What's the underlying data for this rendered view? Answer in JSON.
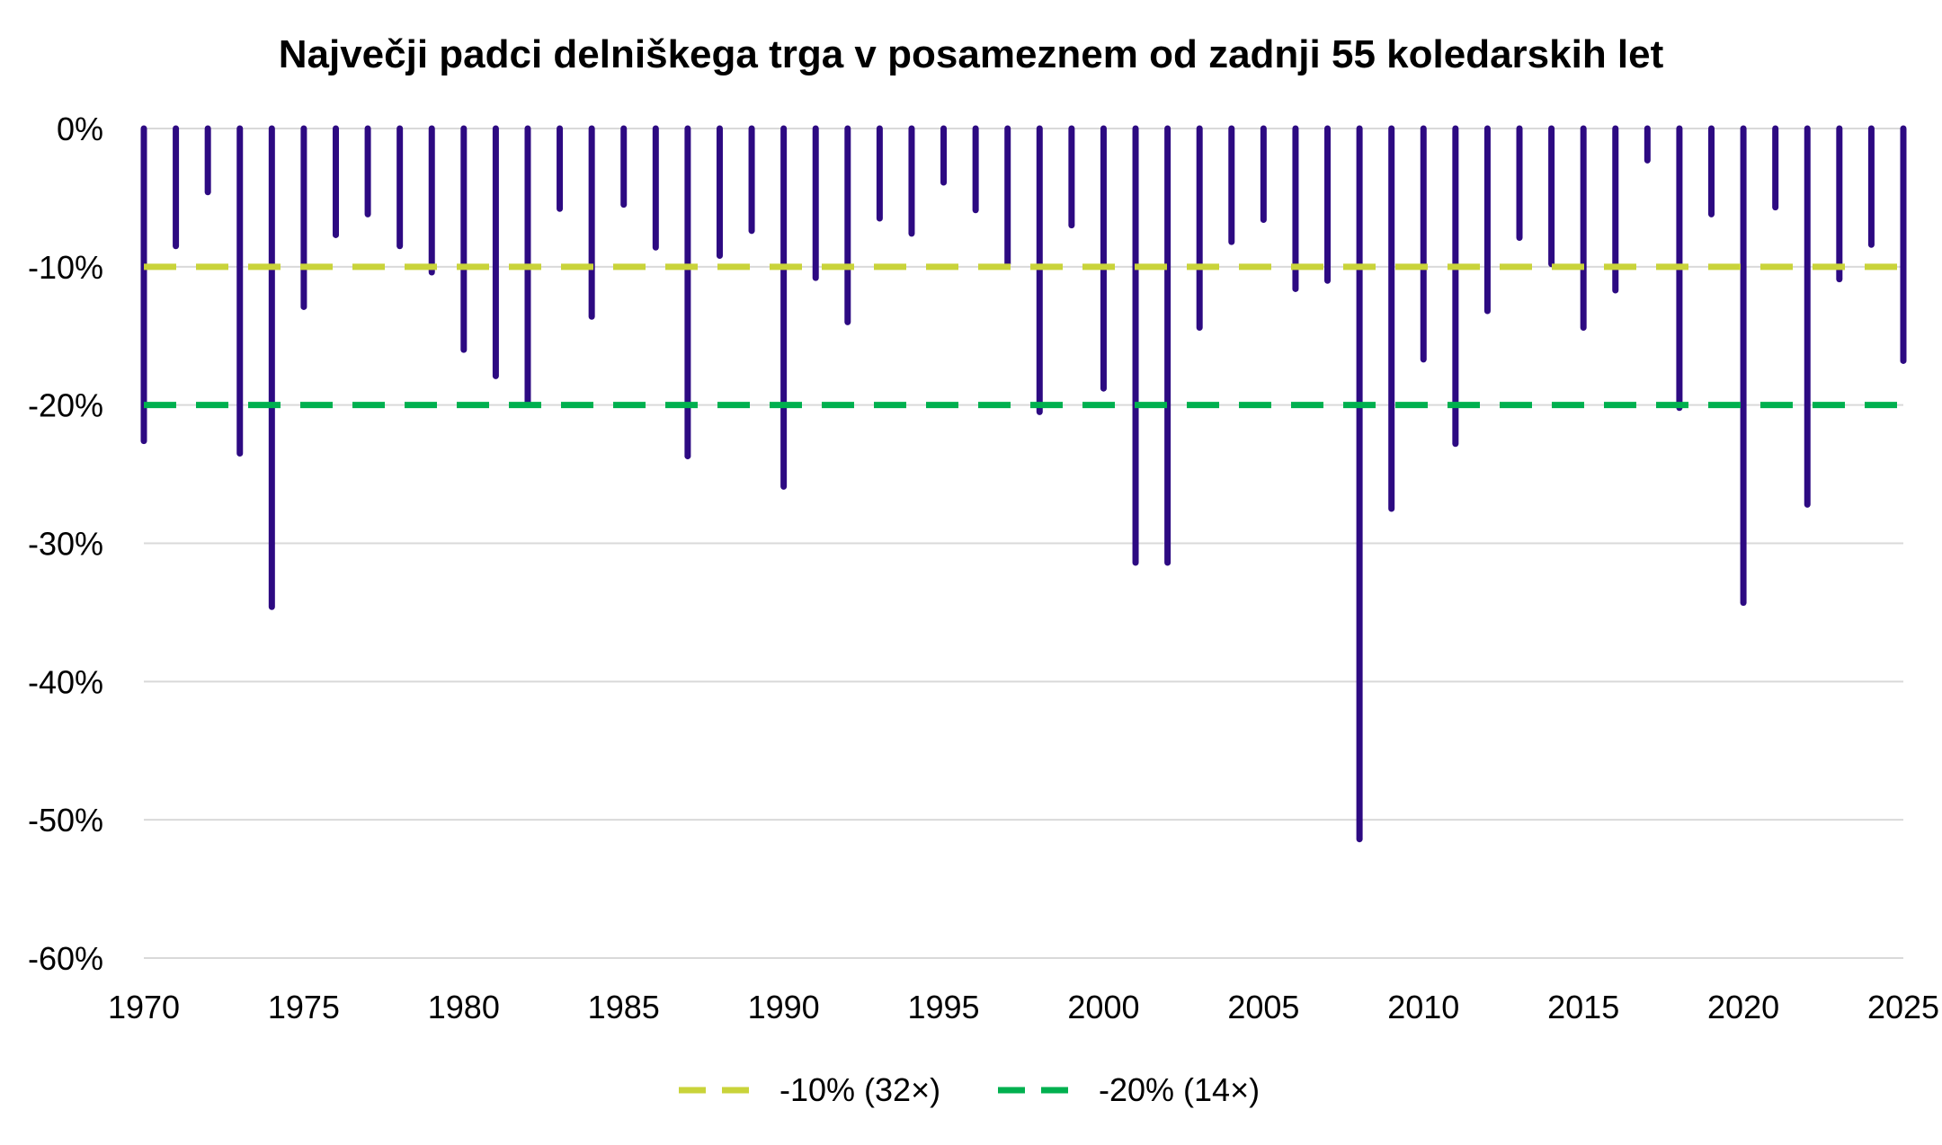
{
  "chart_data": {
    "type": "bar",
    "title": "Največji padci delniškega trga v posameznem od zadnji 55 koledarskih let",
    "xlabel": "",
    "ylabel": "",
    "xlim": [
      1970,
      2025
    ],
    "ylim": [
      -60,
      0
    ],
    "y_ticks": [
      "0%",
      "-10%",
      "-20%",
      "-30%",
      "-40%",
      "-50%",
      "-60%"
    ],
    "y_tick_values": [
      0,
      -10,
      -20,
      -30,
      -40,
      -50,
      -60
    ],
    "x_ticks": [
      "1970",
      "1975",
      "1980",
      "1985",
      "1990",
      "1995",
      "2000",
      "2005",
      "2010",
      "2015",
      "2020",
      "2025"
    ],
    "x_tick_values": [
      1970,
      1975,
      1980,
      1985,
      1990,
      1995,
      2000,
      2005,
      2010,
      2015,
      2020,
      2025
    ],
    "grid": true,
    "legend_position": "bottom",
    "bar_color": "#2d0a82",
    "series": [
      {
        "name": "",
        "years": [
          1970,
          1971,
          1972,
          1973,
          1974,
          1975,
          1976,
          1977,
          1978,
          1979,
          1980,
          1981,
          1982,
          1983,
          1984,
          1985,
          1986,
          1987,
          1988,
          1989,
          1990,
          1991,
          1992,
          1993,
          1994,
          1995,
          1996,
          1997,
          1998,
          1999,
          2000,
          2001,
          2002,
          2003,
          2004,
          2005,
          2006,
          2007,
          2008,
          2009,
          2010,
          2011,
          2012,
          2013,
          2014,
          2015,
          2016,
          2017,
          2018,
          2019,
          2020,
          2021,
          2022,
          2023,
          2024,
          2025
        ],
        "values": [
          -22.6,
          -8.5,
          -4.6,
          -23.5,
          -34.6,
          -12.9,
          -7.7,
          -6.2,
          -8.5,
          -10.4,
          -16.0,
          -17.9,
          -19.8,
          -5.8,
          -13.6,
          -5.5,
          -8.6,
          -23.7,
          -9.2,
          -7.4,
          -25.9,
          -10.8,
          -14.0,
          -6.5,
          -7.6,
          -3.9,
          -5.9,
          -9.8,
          -20.5,
          -7.0,
          -18.8,
          -31.4,
          -31.4,
          -14.4,
          -8.2,
          -6.6,
          -11.6,
          -11.0,
          -51.4,
          -27.5,
          -16.7,
          -22.8,
          -13.2,
          -7.9,
          -9.8,
          -14.4,
          -11.7,
          -2.3,
          -20.2,
          -6.2,
          -34.3,
          -5.7,
          -27.2,
          -10.9,
          -8.4,
          -16.8
        ]
      }
    ],
    "reference_lines": [
      {
        "label": "-10% (32×)",
        "value": -10,
        "color": "#c9d33a"
      },
      {
        "label": "-20% (14×)",
        "value": -20,
        "color": "#00b04f"
      }
    ]
  }
}
